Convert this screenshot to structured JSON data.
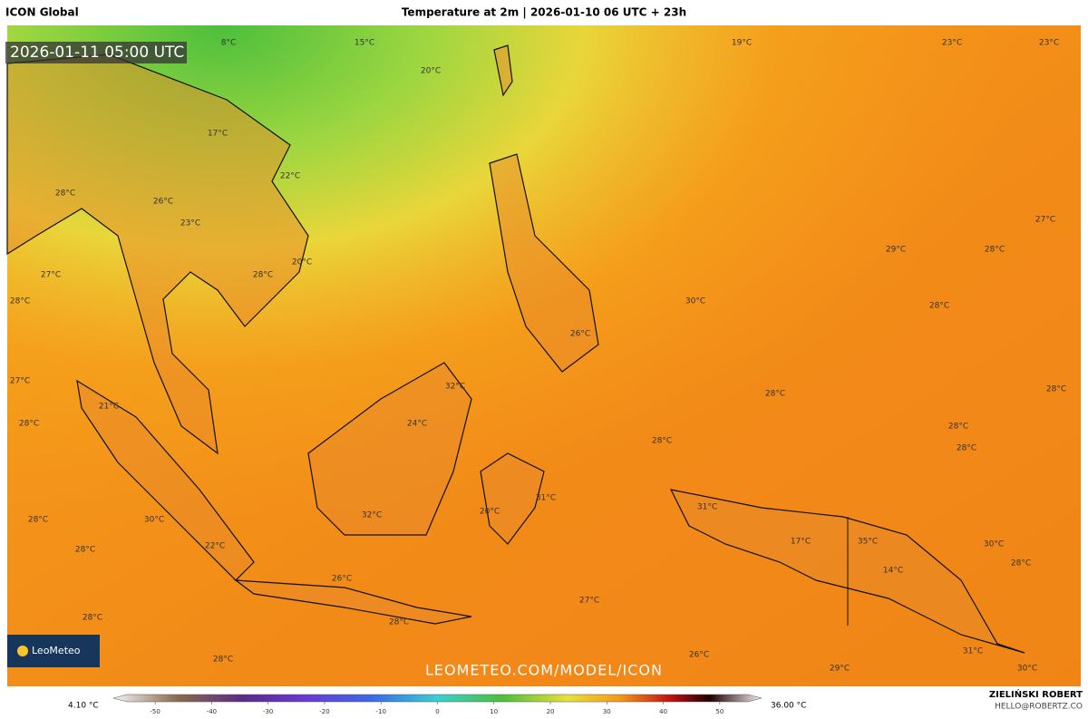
{
  "header": {
    "model": "ICON Global",
    "title": "Temperature at 2m | 2026-01-10 06 UTC + 23h"
  },
  "valid_time": "2026-01-11 05:00 UTC",
  "logo": "LeoMeteo",
  "watermark": "LEOMETEO.COM/MODEL/ICON",
  "map_labels": [
    "8°C",
    "15°C",
    "20°C",
    "19°C",
    "23°C",
    "23°C",
    "17°C",
    "22°C",
    "28°C",
    "26°C",
    "23°C",
    "27°C",
    "29°C",
    "28°C",
    "27°C",
    "20°C",
    "28°C",
    "28°C",
    "30°C",
    "28°C",
    "26°C",
    "27°C",
    "32°C",
    "28°C",
    "28°C",
    "24°C",
    "28°C",
    "21°C",
    "28°C",
    "28°C",
    "28°C",
    "31°C",
    "31°C",
    "20°C",
    "28°C",
    "30°C",
    "32°C",
    "17°C",
    "35°C",
    "22°C",
    "28°C",
    "30°C",
    "28°C",
    "14°C",
    "26°C",
    "27°C",
    "28°C",
    "28°C",
    "26°C",
    "28°C",
    "29°C",
    "31°C",
    "30°C"
  ],
  "colorbar": {
    "min_label": "4.10 °C",
    "max_label": "36.00 °C",
    "ticks": [
      -50,
      -40,
      -30,
      -20,
      -10,
      0,
      10,
      20,
      30,
      40,
      50
    ],
    "lim": [
      -55,
      55
    ]
  },
  "author": {
    "name": "ZIELIŃSKI ROBERT",
    "email": "HELLO@ROBERTZ.CO"
  }
}
